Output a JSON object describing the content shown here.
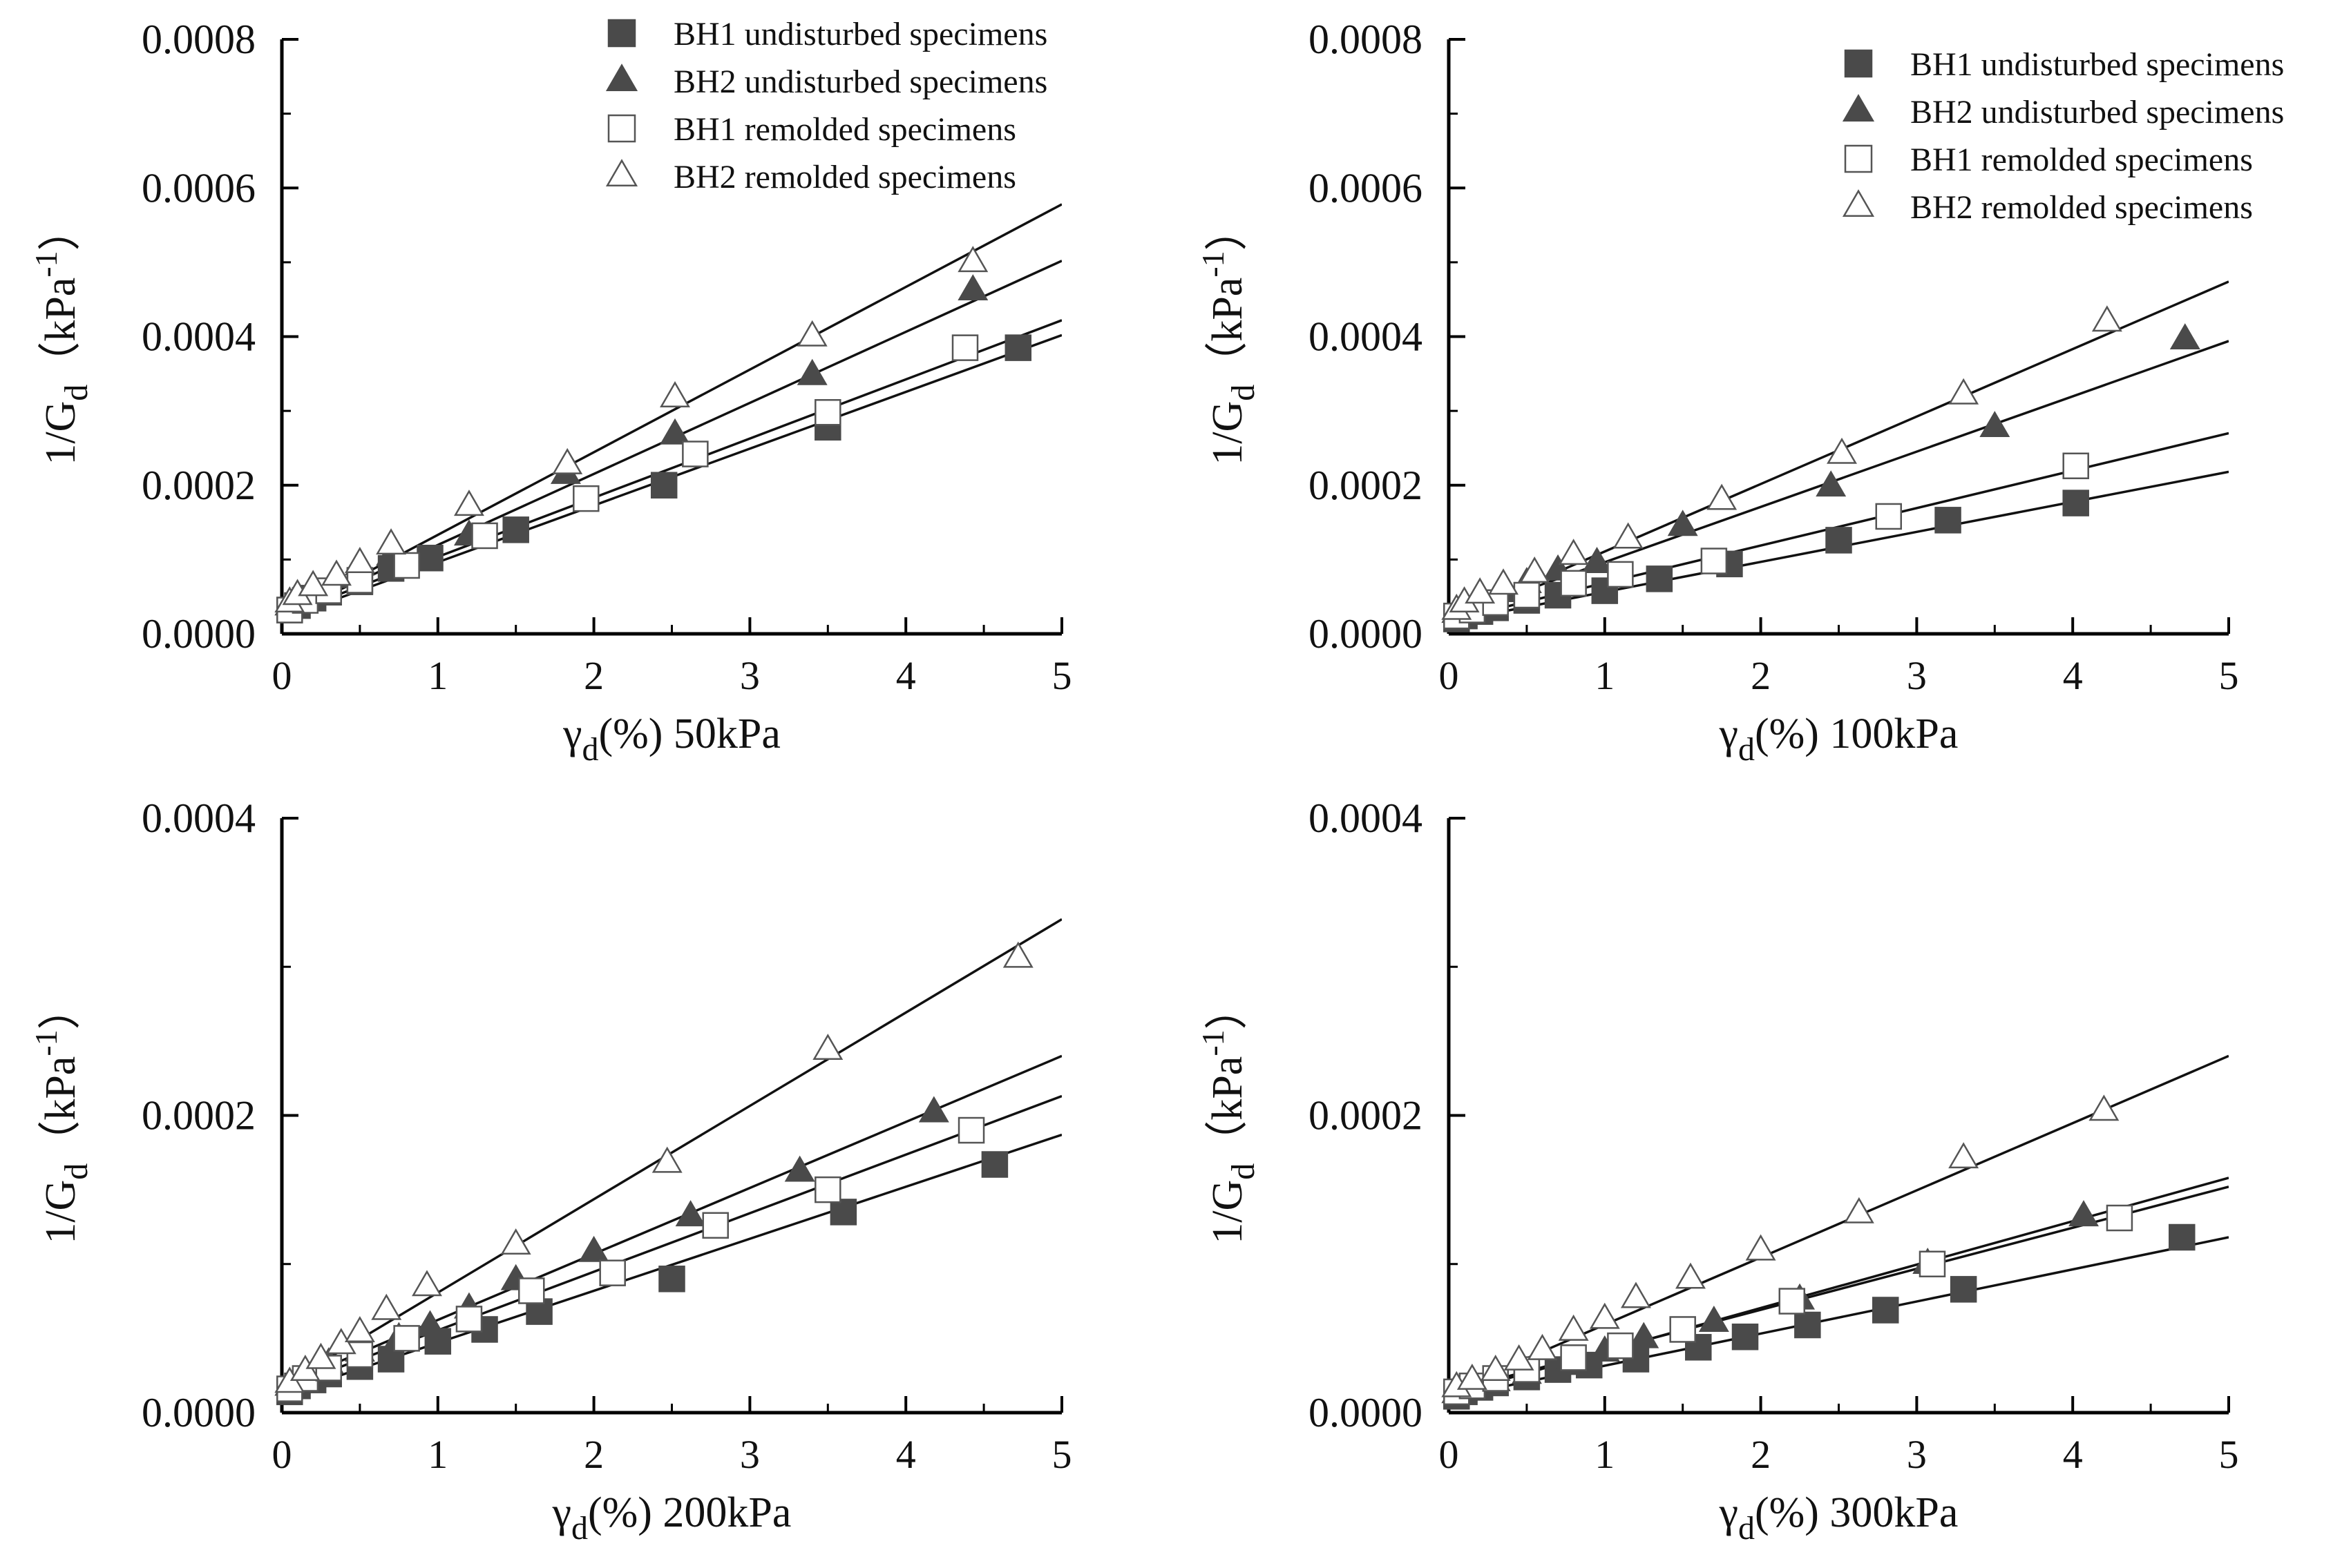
{
  "chart_data": [
    {
      "type": "scatter",
      "panel": "top-left",
      "xlabel_main": "γ",
      "xlabel_sub": "d",
      "xlabel_rest": "(%) 50kPa",
      "ylabel_main": "1/G",
      "ylabel_sub": "d",
      "ylabel_open": "（kPa",
      "ylabel_sup": "-1",
      "ylabel_close": "）",
      "xlim": [
        0,
        5
      ],
      "ylim": [
        0,
        0.0008
      ],
      "xticks": [
        "0",
        "1",
        "2",
        "3",
        "4",
        "5"
      ],
      "yticks": [
        "0.0000",
        "0.0002",
        "0.0004",
        "0.0006",
        "0.0008"
      ],
      "legend_position": "top-center",
      "series": [
        {
          "name": "BH1 undisturbed specimens",
          "marker": "square-filled",
          "points": [
            [
              0.05,
              3.2e-05
            ],
            [
              0.1,
              3.8e-05
            ],
            [
              0.2,
              4.8e-05
            ],
            [
              0.3,
              5.6e-05
            ],
            [
              0.5,
              7e-05
            ],
            [
              0.7,
              8.8e-05
            ],
            [
              0.95,
              0.000102
            ],
            [
              1.5,
              0.00014
            ],
            [
              2.45,
              0.0002
            ],
            [
              3.5,
              0.000278
            ],
            [
              4.72,
              0.000385
            ]
          ],
          "fit": [
            2e-05,
            7.64e-05
          ]
        },
        {
          "name": "BH2 undisturbed specimens",
          "marker": "triangle-filled",
          "points": [
            [
              0.05,
              3.8e-05
            ],
            [
              0.1,
              4.8e-05
            ],
            [
              0.2,
              6e-05
            ],
            [
              0.35,
              7.5e-05
            ],
            [
              0.5,
              9.2e-05
            ],
            [
              0.7,
              0.000105
            ],
            [
              1.2,
              0.000132
            ],
            [
              1.82,
              0.000215
            ],
            [
              2.52,
              0.000268
            ],
            [
              3.4,
              0.000348
            ],
            [
              4.43,
              0.000462
            ]
          ],
          "fit": [
            2.4e-05,
            9.56e-05
          ]
        },
        {
          "name": "BH1 remolded specimens",
          "marker": "square-open",
          "points": [
            [
              0.05,
              3.2e-05
            ],
            [
              0.15,
              4.5e-05
            ],
            [
              0.3,
              5.8e-05
            ],
            [
              0.5,
              7.2e-05
            ],
            [
              0.8,
              9.2e-05
            ],
            [
              1.3,
              0.000132
            ],
            [
              1.95,
              0.000182
            ],
            [
              2.65,
              0.000242
            ],
            [
              3.5,
              0.000298
            ],
            [
              4.38,
              0.000385
            ]
          ],
          "fit": [
            2.4e-05,
            7.96e-05
          ]
        },
        {
          "name": "BH2 remolded specimens",
          "marker": "triangle-open",
          "points": [
            [
              0.05,
              4.2e-05
            ],
            [
              0.1,
              5.2e-05
            ],
            [
              0.2,
              6.4e-05
            ],
            [
              0.35,
              7.8e-05
            ],
            [
              0.5,
              9.5e-05
            ],
            [
              0.7,
              0.00012
            ],
            [
              1.2,
              0.000172
            ],
            [
              1.83,
              0.000228
            ],
            [
              2.52,
              0.000318
            ],
            [
              3.4,
              0.0004
            ],
            [
              4.43,
              0.0005
            ]
          ],
          "fit": [
            2.2e-05,
            0.0001112
          ]
        }
      ]
    },
    {
      "type": "scatter",
      "panel": "top-right",
      "xlabel_main": "γ",
      "xlabel_sub": "d",
      "xlabel_rest": "(%) 100kPa",
      "ylabel_main": "1/G",
      "ylabel_sub": "d",
      "ylabel_open": "（kPa",
      "ylabel_sup": "-1",
      "ylabel_close": "）",
      "xlim": [
        0,
        5
      ],
      "ylim": [
        0,
        0.0008
      ],
      "xticks": [
        "0",
        "1",
        "2",
        "3",
        "4",
        "5"
      ],
      "yticks": [
        "0.0000",
        "0.0002",
        "0.0004",
        "0.0006",
        "0.0008"
      ],
      "legend_position": "top-right",
      "series": [
        {
          "name": "BH1 undisturbed specimens",
          "marker": "square-filled",
          "points": [
            [
              0.05,
              2e-05
            ],
            [
              0.1,
              2.4e-05
            ],
            [
              0.2,
              3e-05
            ],
            [
              0.3,
              3.5e-05
            ],
            [
              0.5,
              4.5e-05
            ],
            [
              0.7,
              5.2e-05
            ],
            [
              1.0,
              5.8e-05
            ],
            [
              1.35,
              7.4e-05
            ],
            [
              1.8,
              9.4e-05
            ],
            [
              2.5,
              0.000126
            ],
            [
              3.2,
              0.000153
            ],
            [
              4.02,
              0.000176
            ]
          ],
          "fit": [
            1.6e-05,
            4.04e-05
          ]
        },
        {
          "name": "BH2 undisturbed specimens",
          "marker": "triangle-filled",
          "points": [
            [
              0.05,
              2.8e-05
            ],
            [
              0.1,
              3.4e-05
            ],
            [
              0.2,
              4.4e-05
            ],
            [
              0.35,
              5.6e-05
            ],
            [
              0.5,
              6.8e-05
            ],
            [
              0.7,
              8.5e-05
            ],
            [
              0.95,
              9.5e-05
            ],
            [
              1.5,
              0.000145
            ],
            [
              2.45,
              0.000198
            ],
            [
              3.5,
              0.000278
            ],
            [
              4.72,
              0.000396
            ]
          ],
          "fit": [
            2.2e-05,
            7.44e-05
          ]
        },
        {
          "name": "BH1 remolded specimens",
          "marker": "square-open",
          "points": [
            [
              0.05,
              2.4e-05
            ],
            [
              0.15,
              3.2e-05
            ],
            [
              0.3,
              4.2e-05
            ],
            [
              0.5,
              5.2e-05
            ],
            [
              0.8,
              6.8e-05
            ],
            [
              1.1,
              8e-05
            ],
            [
              1.7,
              9.8e-05
            ],
            [
              2.82,
              0.000158
            ],
            [
              4.02,
              0.000226
            ]
          ],
          "fit": [
            1.8e-05,
            5.04e-05
          ]
        },
        {
          "name": "BH2 remolded specimens",
          "marker": "triangle-open",
          "points": [
            [
              0.05,
              3.2e-05
            ],
            [
              0.1,
              4.2e-05
            ],
            [
              0.2,
              5.4e-05
            ],
            [
              0.35,
              6.6e-05
            ],
            [
              0.55,
              8.2e-05
            ],
            [
              0.8,
              0.000106
            ],
            [
              1.15,
              0.000128
            ],
            [
              1.75,
              0.00018
            ],
            [
              2.52,
              0.000242
            ],
            [
              3.3,
              0.000322
            ],
            [
              4.22,
              0.00042
            ]
          ],
          "fit": [
            2e-05,
            9.08e-05
          ]
        }
      ]
    },
    {
      "type": "scatter",
      "panel": "bottom-left",
      "xlabel_main": "γ",
      "xlabel_sub": "d",
      "xlabel_rest": "(%) 200kPa",
      "ylabel_main": "1/G",
      "ylabel_sub": "d",
      "ylabel_open": "（kPa",
      "ylabel_sup": "-1",
      "ylabel_close": "）",
      "xlim": [
        0,
        5
      ],
      "ylim": [
        0,
        0.0004
      ],
      "xticks": [
        "0",
        "1",
        "2",
        "3",
        "4",
        "5"
      ],
      "yticks": [
        "0.0000",
        "0.0002",
        "0.0004"
      ],
      "series": [
        {
          "name": "BH1 undisturbed specimens",
          "marker": "square-filled",
          "points": [
            [
              0.05,
              1.4e-05
            ],
            [
              0.1,
              1.8e-05
            ],
            [
              0.2,
              2.2e-05
            ],
            [
              0.3,
              2.6e-05
            ],
            [
              0.5,
              3.1e-05
            ],
            [
              0.7,
              3.6e-05
            ],
            [
              1.0,
              4.8e-05
            ],
            [
              1.3,
              5.6e-05
            ],
            [
              1.65,
              6.8e-05
            ],
            [
              2.5,
              9e-05
            ],
            [
              3.6,
              0.000135
            ],
            [
              4.57,
              0.000167
            ]
          ],
          "fit": [
            1.2e-05,
            3.5e-05
          ]
        },
        {
          "name": "BH2 undisturbed specimens",
          "marker": "triangle-filled",
          "points": [
            [
              0.05,
              1.8e-05
            ],
            [
              0.15,
              2.5e-05
            ],
            [
              0.3,
              3.3e-05
            ],
            [
              0.5,
              4.1e-05
            ],
            [
              0.75,
              5e-05
            ],
            [
              0.95,
              5.8e-05
            ],
            [
              1.2,
              7e-05
            ],
            [
              1.5,
              8.9e-05
            ],
            [
              2.0,
              0.000108
            ],
            [
              2.62,
              0.000132
            ],
            [
              3.32,
              0.000162
            ],
            [
              4.18,
              0.000202
            ]
          ],
          "fit": [
            1.8e-05,
            4.44e-05
          ]
        },
        {
          "name": "BH1 remolded specimens",
          "marker": "square-open",
          "points": [
            [
              0.05,
              1.6e-05
            ],
            [
              0.15,
              2.3e-05
            ],
            [
              0.3,
              3e-05
            ],
            [
              0.5,
              3.9e-05
            ],
            [
              0.8,
              5e-05
            ],
            [
              1.2,
              6.3e-05
            ],
            [
              1.6,
              8.2e-05
            ],
            [
              2.12,
              9.4e-05
            ],
            [
              2.78,
              0.000126
            ],
            [
              3.5,
              0.00015
            ],
            [
              4.42,
              0.00019
            ]
          ],
          "fit": [
            1.6e-05,
            3.94e-05
          ]
        },
        {
          "name": "BH2 remolded specimens",
          "marker": "triangle-open",
          "points": [
            [
              0.05,
              2e-05
            ],
            [
              0.15,
              2.8e-05
            ],
            [
              0.25,
              3.6e-05
            ],
            [
              0.38,
              4.6e-05
            ],
            [
              0.5,
              5.4e-05
            ],
            [
              0.67,
              6.9e-05
            ],
            [
              0.93,
              8.5e-05
            ],
            [
              1.5,
              0.000113
            ],
            [
              2.47,
              0.000168
            ],
            [
              3.5,
              0.000244
            ],
            [
              4.72,
              0.000306
            ]
          ],
          "fit": [
            1.8e-05,
            6.28e-05
          ]
        }
      ]
    },
    {
      "type": "scatter",
      "panel": "bottom-right",
      "xlabel_main": "γ",
      "xlabel_sub": "d",
      "xlabel_rest": "(%) 300kPa",
      "ylabel_main": "1/G",
      "ylabel_sub": "d",
      "ylabel_open": "（kPa",
      "ylabel_sup": "-1",
      "ylabel_close": "）",
      "xlim": [
        0,
        5
      ],
      "ylim": [
        0,
        0.0004
      ],
      "xticks": [
        "0",
        "1",
        "2",
        "3",
        "4",
        "5"
      ],
      "yticks": [
        "0.0000",
        "0.0002",
        "0.0004"
      ],
      "series": [
        {
          "name": "BH1 undisturbed specimens",
          "marker": "square-filled",
          "points": [
            [
              0.05,
              1.1e-05
            ],
            [
              0.1,
              1.4e-05
            ],
            [
              0.2,
              1.7e-05
            ],
            [
              0.3,
              2e-05
            ],
            [
              0.5,
              2.4e-05
            ],
            [
              0.7,
              2.9e-05
            ],
            [
              0.9,
              3.2e-05
            ],
            [
              1.2,
              3.6e-05
            ],
            [
              1.6,
              4.4e-05
            ],
            [
              1.9,
              5.1e-05
            ],
            [
              2.3,
              5.9e-05
            ],
            [
              2.8,
              6.9e-05
            ],
            [
              3.3,
              8.3e-05
            ],
            [
              4.7,
              0.000118
            ]
          ],
          "fit": [
            1e-05,
            2.16e-05
          ]
        },
        {
          "name": "BH2 undisturbed specimens",
          "marker": "triangle-filled",
          "points": [
            [
              0.05,
              1.3e-05
            ],
            [
              0.15,
              1.7e-05
            ],
            [
              0.3,
              2.1e-05
            ],
            [
              0.5,
              2.6e-05
            ],
            [
              0.75,
              3.2e-05
            ],
            [
              1.0,
              4.1e-05
            ],
            [
              1.25,
              5e-05
            ],
            [
              1.7,
              6.1e-05
            ],
            [
              2.25,
              7.6e-05
            ],
            [
              3.07,
              0.0001
            ],
            [
              4.07,
              0.000132
            ]
          ],
          "fit": [
            1.2e-05,
            2.92e-05
          ]
        },
        {
          "name": "BH1 remolded specimens",
          "marker": "square-open",
          "points": [
            [
              0.05,
              1.4e-05
            ],
            [
              0.15,
              1.8e-05
            ],
            [
              0.3,
              2.3e-05
            ],
            [
              0.5,
              2.9e-05
            ],
            [
              0.8,
              3.7e-05
            ],
            [
              1.1,
              4.5e-05
            ],
            [
              1.5,
              5.6e-05
            ],
            [
              2.2,
              7.5e-05
            ],
            [
              3.1,
              0.0001
            ],
            [
              4.3,
              0.000131
            ]
          ],
          "fit": [
            1.4e-05,
            2.76e-05
          ]
        },
        {
          "name": "BH2 remolded specimens",
          "marker": "triangle-open",
          "points": [
            [
              0.05,
              1.7e-05
            ],
            [
              0.15,
              2.2e-05
            ],
            [
              0.3,
              2.8e-05
            ],
            [
              0.45,
              3.5e-05
            ],
            [
              0.6,
              4.2e-05
            ],
            [
              0.8,
              5.5e-05
            ],
            [
              1.0,
              6.3e-05
            ],
            [
              1.2,
              7.7e-05
            ],
            [
              1.55,
              9e-05
            ],
            [
              2.0,
              0.000109
            ],
            [
              2.63,
              0.000134
            ],
            [
              3.3,
              0.000171
            ],
            [
              4.2,
              0.000203
            ]
          ],
          "fit": [
            1.4e-05,
            4.52e-05
          ]
        }
      ]
    }
  ]
}
